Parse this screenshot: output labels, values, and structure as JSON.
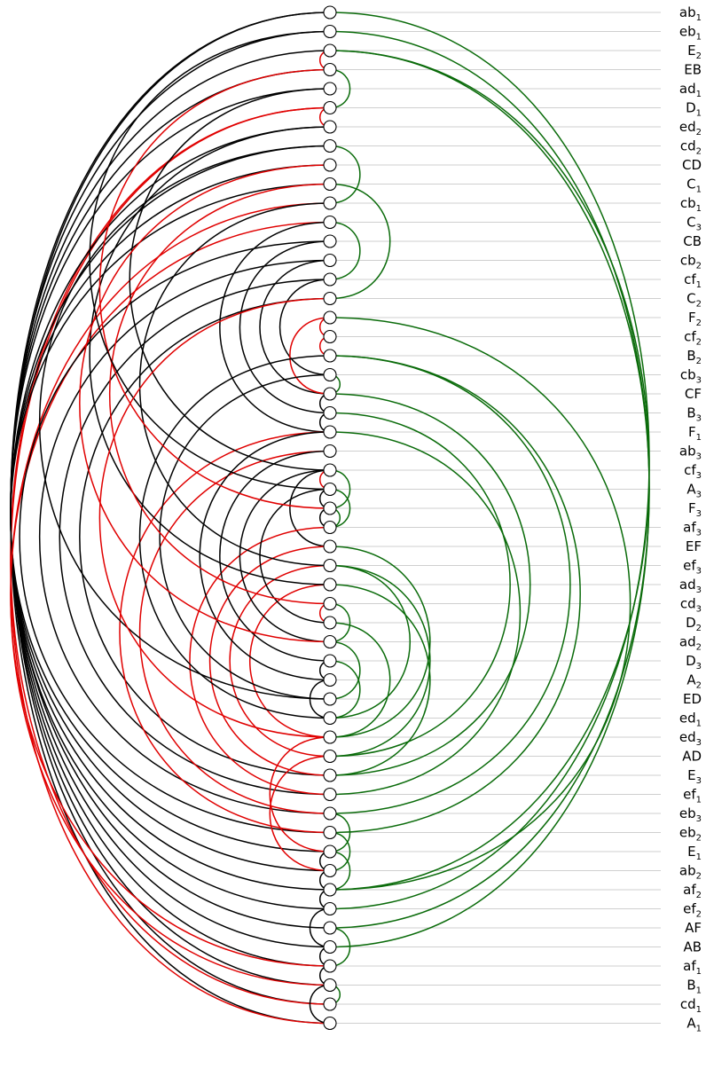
{
  "colors": {
    "left_black": "#000000",
    "left_red": "#e00000",
    "right_green": "#0a6b0a",
    "guide": "#cfcfcf"
  },
  "nodes": [
    {
      "base": "ab",
      "sub": "1"
    },
    {
      "base": "eb",
      "sub": "1"
    },
    {
      "base": "E",
      "sub": "2"
    },
    {
      "base": "EB",
      "sub": ""
    },
    {
      "base": "ad",
      "sub": "1"
    },
    {
      "base": "D",
      "sub": "1"
    },
    {
      "base": "ed",
      "sub": "2"
    },
    {
      "base": "cd",
      "sub": "2"
    },
    {
      "base": "CD",
      "sub": ""
    },
    {
      "base": "C",
      "sub": "1"
    },
    {
      "base": "cb",
      "sub": "1"
    },
    {
      "base": "C",
      "sub": "3"
    },
    {
      "base": "CB",
      "sub": ""
    },
    {
      "base": "cb",
      "sub": "2"
    },
    {
      "base": "cf",
      "sub": "1"
    },
    {
      "base": "C",
      "sub": "2"
    },
    {
      "base": "F",
      "sub": "2"
    },
    {
      "base": "cf",
      "sub": "2"
    },
    {
      "base": "B",
      "sub": "2"
    },
    {
      "base": "cb",
      "sub": "3"
    },
    {
      "base": "CF",
      "sub": ""
    },
    {
      "base": "B",
      "sub": "3"
    },
    {
      "base": "F",
      "sub": "1"
    },
    {
      "base": "ab",
      "sub": "3"
    },
    {
      "base": "cf",
      "sub": "3"
    },
    {
      "base": "A",
      "sub": "3"
    },
    {
      "base": "F",
      "sub": "3"
    },
    {
      "base": "af",
      "sub": "3"
    },
    {
      "base": "EF",
      "sub": ""
    },
    {
      "base": "ef",
      "sub": "3"
    },
    {
      "base": "ad",
      "sub": "3"
    },
    {
      "base": "cd",
      "sub": "3"
    },
    {
      "base": "D",
      "sub": "2"
    },
    {
      "base": "ad",
      "sub": "2"
    },
    {
      "base": "D",
      "sub": "3"
    },
    {
      "base": "A",
      "sub": "2"
    },
    {
      "base": "ED",
      "sub": ""
    },
    {
      "base": "ed",
      "sub": "1"
    },
    {
      "base": "ed",
      "sub": "3"
    },
    {
      "base": "AD",
      "sub": ""
    },
    {
      "base": "E",
      "sub": "3"
    },
    {
      "base": "ef",
      "sub": "1"
    },
    {
      "base": "eb",
      "sub": "3"
    },
    {
      "base": "eb",
      "sub": "2"
    },
    {
      "base": "E",
      "sub": "1"
    },
    {
      "base": "ab",
      "sub": "2"
    },
    {
      "base": "af",
      "sub": "2"
    },
    {
      "base": "ef",
      "sub": "2"
    },
    {
      "base": "AF",
      "sub": ""
    },
    {
      "base": "AB",
      "sub": ""
    },
    {
      "base": "af",
      "sub": "1"
    },
    {
      "base": "B",
      "sub": "1"
    },
    {
      "base": "cd",
      "sub": "1"
    },
    {
      "base": "A",
      "sub": "1"
    }
  ],
  "left_edges": [
    [
      0,
      53,
      "black"
    ],
    [
      0,
      52,
      "black"
    ],
    [
      1,
      51,
      "black"
    ],
    [
      2,
      50,
      "black"
    ],
    [
      3,
      49,
      "black"
    ],
    [
      4,
      48,
      "black"
    ],
    [
      5,
      53,
      "red"
    ],
    [
      5,
      52,
      "red"
    ],
    [
      6,
      47,
      "black"
    ],
    [
      7,
      46,
      "black"
    ],
    [
      8,
      45,
      "black"
    ],
    [
      9,
      44,
      "black"
    ],
    [
      10,
      51,
      "red"
    ],
    [
      11,
      50,
      "red"
    ],
    [
      12,
      43,
      "black"
    ],
    [
      13,
      42,
      "black"
    ],
    [
      14,
      41,
      "black"
    ],
    [
      15,
      40,
      "black"
    ],
    [
      2,
      3,
      "red"
    ],
    [
      5,
      6,
      "red"
    ],
    [
      16,
      17,
      "red"
    ],
    [
      17,
      18,
      "red"
    ],
    [
      20,
      21,
      "black"
    ],
    [
      21,
      22,
      "black"
    ],
    [
      11,
      22,
      "black"
    ],
    [
      12,
      21,
      "black"
    ],
    [
      13,
      20,
      "black"
    ],
    [
      14,
      19,
      "black"
    ],
    [
      16,
      20,
      "red"
    ],
    [
      24,
      25,
      "red"
    ],
    [
      25,
      26,
      "black"
    ],
    [
      26,
      27,
      "black"
    ],
    [
      24,
      28,
      "black"
    ],
    [
      31,
      32,
      "red"
    ],
    [
      34,
      35,
      "black"
    ],
    [
      35,
      37,
      "black"
    ],
    [
      22,
      43,
      "red"
    ],
    [
      23,
      42,
      "red"
    ],
    [
      27,
      41,
      "red"
    ],
    [
      28,
      40,
      "red"
    ],
    [
      29,
      39,
      "red"
    ],
    [
      30,
      38,
      "red"
    ],
    [
      18,
      37,
      "black"
    ],
    [
      19,
      36,
      "black"
    ],
    [
      22,
      35,
      "black"
    ],
    [
      23,
      34,
      "black"
    ],
    [
      24,
      33,
      "black"
    ],
    [
      25,
      32,
      "black"
    ],
    [
      38,
      44,
      "red"
    ],
    [
      39,
      45,
      "red"
    ],
    [
      44,
      45,
      "black"
    ],
    [
      45,
      46,
      "black"
    ],
    [
      46,
      47,
      "black"
    ],
    [
      47,
      49,
      "black"
    ],
    [
      49,
      50,
      "black"
    ],
    [
      50,
      51,
      "black"
    ],
    [
      51,
      53,
      "black"
    ],
    [
      4,
      24,
      "black"
    ],
    [
      6,
      30,
      "black"
    ],
    [
      7,
      36,
      "black"
    ],
    [
      8,
      33,
      "red"
    ],
    [
      9,
      31,
      "red"
    ],
    [
      10,
      29,
      "black"
    ],
    [
      3,
      26,
      "red"
    ],
    [
      1,
      25,
      "black"
    ],
    [
      15,
      38,
      "red"
    ]
  ],
  "right_edges": [
    [
      1,
      49
    ],
    [
      2,
      48
    ],
    [
      2,
      46
    ],
    [
      0,
      47
    ],
    [
      3,
      5
    ],
    [
      7,
      10
    ],
    [
      9,
      15
    ],
    [
      11,
      14
    ],
    [
      16,
      46
    ],
    [
      18,
      42
    ],
    [
      18,
      43
    ],
    [
      20,
      40
    ],
    [
      21,
      39
    ],
    [
      22,
      41
    ],
    [
      24,
      26
    ],
    [
      28,
      38
    ],
    [
      29,
      37
    ],
    [
      29,
      39
    ],
    [
      30,
      40
    ],
    [
      31,
      33
    ],
    [
      33,
      36
    ],
    [
      32,
      38
    ],
    [
      34,
      37
    ],
    [
      44,
      46
    ],
    [
      48,
      50
    ],
    [
      51,
      52
    ],
    [
      19,
      20
    ],
    [
      26,
      27
    ],
    [
      25,
      27
    ],
    [
      42,
      44
    ],
    [
      43,
      45
    ]
  ]
}
